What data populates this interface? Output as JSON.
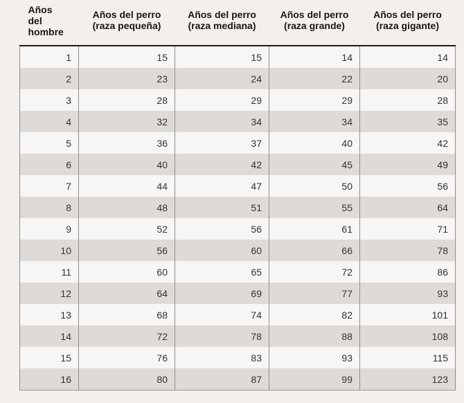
{
  "header_display": [
    {
      "lines": [
        "Años",
        "del",
        "hombre"
      ]
    },
    {
      "lines": [
        "Años del perro",
        "(raza pequeña)"
      ]
    },
    {
      "lines": [
        "Años del perro",
        "(raza mediana)"
      ]
    },
    {
      "lines": [
        "Años del perro",
        "(raza grande)"
      ]
    },
    {
      "lines": [
        "Años del perro",
        "(raza gigante)"
      ]
    }
  ],
  "chart_data": {
    "type": "table",
    "title": "",
    "columns": [
      "Años del hombre",
      "Años del perro (raza pequeña)",
      "Años del perro (raza mediana)",
      "Años del perro (raza grande)",
      "Años del perro (raza gigante)"
    ],
    "rows": [
      [
        1,
        15,
        15,
        14,
        14
      ],
      [
        2,
        23,
        24,
        22,
        20
      ],
      [
        3,
        28,
        29,
        29,
        28
      ],
      [
        4,
        32,
        34,
        34,
        35
      ],
      [
        5,
        36,
        37,
        40,
        42
      ],
      [
        6,
        40,
        42,
        45,
        49
      ],
      [
        7,
        44,
        47,
        50,
        56
      ],
      [
        8,
        48,
        51,
        55,
        64
      ],
      [
        9,
        52,
        56,
        61,
        71
      ],
      [
        10,
        56,
        60,
        66,
        78
      ],
      [
        11,
        60,
        65,
        72,
        86
      ],
      [
        12,
        64,
        69,
        77,
        93
      ],
      [
        13,
        68,
        74,
        82,
        101
      ],
      [
        14,
        72,
        78,
        88,
        108
      ],
      [
        15,
        76,
        83,
        93,
        115
      ],
      [
        16,
        80,
        87,
        99,
        123
      ]
    ],
    "layout": {
      "grid": "vertical-lines-only",
      "row_striping": true,
      "header_rule": "thick-dark"
    }
  },
  "colors": {
    "page_background": "#f2efec",
    "row_odd": "#f8f6f5",
    "row_even": "#dedad7",
    "grid_line": "#8f8c89",
    "header_rule": "#1e1a16",
    "text": "#333130"
  }
}
